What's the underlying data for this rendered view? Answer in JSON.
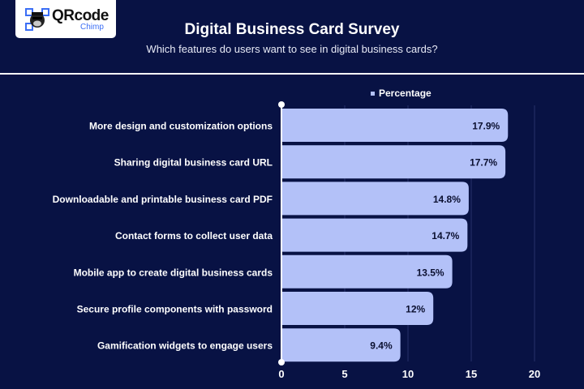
{
  "logo": {
    "text_main": "QRcode",
    "text_sub": "Chimp"
  },
  "header": {
    "title": "Digital Business Card Survey",
    "subtitle": "Which features do users want to see in digital business cards?"
  },
  "colors": {
    "background": "#081244",
    "bar": "#b3c1f8",
    "grid": "#26306a"
  },
  "chart_data": {
    "type": "bar",
    "orientation": "horizontal",
    "title": "Digital Business Card Survey",
    "subtitle": "Which features do users want to see in digital business cards?",
    "categories": [
      "More design and customization options",
      "Sharing digital business card URL",
      "Downloadable and printable business card PDF",
      "Contact forms to collect user data",
      "Mobile app to create digital business cards",
      "Secure profile components with password",
      "Gamification widgets to engage users"
    ],
    "series": [
      {
        "name": "Percentage",
        "values": [
          17.9,
          17.7,
          14.8,
          14.7,
          13.5,
          12,
          9.4
        ]
      }
    ],
    "data_labels": [
      "17.9%",
      "17.7%",
      "14.8%",
      "14.7%",
      "13.5%",
      "12%",
      "9.4%"
    ],
    "xlim": [
      0,
      20
    ],
    "xticks": [
      "0",
      "5",
      "10",
      "15",
      "20"
    ],
    "grid": true,
    "legend": "top"
  }
}
